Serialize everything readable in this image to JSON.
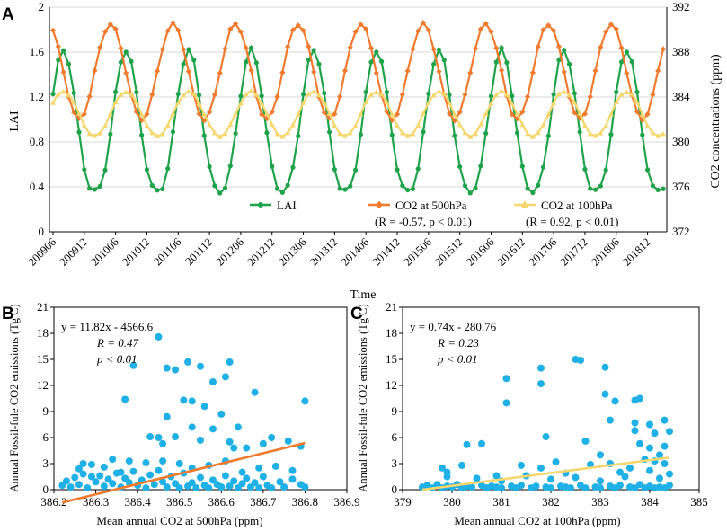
{
  "panels": [
    {
      "label": "A"
    },
    {
      "label": "B"
    },
    {
      "label": "C"
    }
  ],
  "chart_data": [
    {
      "type": "line",
      "panel": "A",
      "xlabel": "Time",
      "ylabel": "LAI",
      "y2label": "CO2 concentrations (ppm)",
      "ylim": [
        0,
        2
      ],
      "y2lim": [
        372,
        392
      ],
      "yticks": [
        "0",
        "0.4",
        "0.8",
        "1.2",
        "1.6",
        "2"
      ],
      "y2ticks": [
        "372",
        "376",
        "380",
        "384",
        "388",
        "392"
      ],
      "xticks": [
        "200906",
        "200912",
        "201006",
        "201012",
        "201106",
        "201112",
        "201206",
        "201212",
        "201306",
        "201312",
        "201406",
        "201412",
        "201506",
        "201512",
        "201606",
        "201612",
        "201706",
        "201712",
        "201806",
        "201812"
      ],
      "start_month": "2009-06",
      "n_months": 118,
      "legend": {
        "lai": "LAI",
        "co2_500": "CO2 at 500hPa",
        "co2_100": "CO2 at 100hPa",
        "stat_500": "(R = -0.57, p < 0.01)",
        "stat_100": "(R = 0.92, p < 0.01)"
      },
      "series": [
        {
          "name": "LAI",
          "axis": "left",
          "color": "#1fa34a",
          "min": 0.36,
          "max": 1.62,
          "peak_month": 7
        },
        {
          "name": "CO2 at 500hPa",
          "axis": "right",
          "color": "#f07a2e",
          "min": 382.0,
          "max": 390.5,
          "peak_month": 4
        },
        {
          "name": "CO2 at 100hPa",
          "axis": "right",
          "color": "#f5d76e",
          "min": 380.5,
          "max": 384.5,
          "peak_month": 7
        }
      ]
    },
    {
      "type": "scatter",
      "panel": "B",
      "xlabel": "Mean annual CO2 at 500hPa (ppm)",
      "ylabel": "Annual Fossil-fule CO2 emissions (Tg C)",
      "xlim": [
        386.2,
        386.9
      ],
      "ylim": [
        0,
        21
      ],
      "xticks": [
        "386.2",
        "386.3",
        "386.4",
        "386.5",
        "386.6",
        "386.7",
        "386.8",
        "386.9"
      ],
      "yticks": [
        "0",
        "3",
        "6",
        "9",
        "12",
        "15",
        "18",
        "21"
      ],
      "equation": "y = 11.82x - 4566.6",
      "r_text": "R = 0.47",
      "p_text": "p < 0.01",
      "slope": 11.82,
      "intercept": -4566.6,
      "fit_x": [
        386.22,
        386.8
      ],
      "point_color": "#1fb0e6",
      "fit_color": "#f07a2e",
      "points": [
        [
          386.45,
          17.6
        ],
        [
          386.39,
          14.3
        ],
        [
          386.47,
          14.0
        ],
        [
          386.49,
          13.8
        ],
        [
          386.52,
          14.7
        ],
        [
          386.55,
          14.2
        ],
        [
          386.62,
          14.7
        ],
        [
          386.58,
          12.4
        ],
        [
          386.61,
          13.0
        ],
        [
          386.51,
          10.3
        ],
        [
          386.53,
          10.2
        ],
        [
          386.37,
          10.4
        ],
        [
          386.56,
          9.6
        ],
        [
          386.68,
          11.2
        ],
        [
          386.8,
          10.2
        ],
        [
          386.47,
          8.4
        ],
        [
          386.6,
          8.7
        ],
        [
          386.53,
          7.2
        ],
        [
          386.58,
          7.0
        ],
        [
          386.64,
          7.2
        ],
        [
          386.43,
          6.1
        ],
        [
          386.45,
          6.0
        ],
        [
          386.49,
          6.1
        ],
        [
          386.55,
          5.7
        ],
        [
          386.62,
          5.5
        ],
        [
          386.46,
          5.3
        ],
        [
          386.63,
          4.8
        ],
        [
          386.66,
          4.8
        ],
        [
          386.72,
          6.0
        ],
        [
          386.76,
          5.6
        ],
        [
          386.79,
          5.0
        ],
        [
          386.7,
          5.3
        ],
        [
          386.34,
          3.5
        ],
        [
          386.38,
          3.3
        ],
        [
          386.42,
          3.1
        ],
        [
          386.46,
          3.3
        ],
        [
          386.5,
          3.0
        ],
        [
          386.53,
          2.5
        ],
        [
          386.57,
          2.8
        ],
        [
          386.61,
          3.3
        ],
        [
          386.65,
          2.0
        ],
        [
          386.69,
          2.5
        ],
        [
          386.73,
          2.7
        ],
        [
          386.77,
          2.2
        ],
        [
          386.22,
          0.5
        ],
        [
          386.23,
          1.0
        ],
        [
          386.24,
          0.3
        ],
        [
          386.25,
          1.4
        ],
        [
          386.26,
          0.6
        ],
        [
          386.27,
          1.8
        ],
        [
          386.28,
          0.2
        ],
        [
          386.29,
          1.5
        ],
        [
          386.3,
          0.9
        ],
        [
          386.31,
          1.6
        ],
        [
          386.32,
          0.4
        ],
        [
          386.33,
          1.2
        ],
        [
          386.34,
          0.7
        ],
        [
          386.35,
          1.9
        ],
        [
          386.36,
          0.3
        ],
        [
          386.37,
          1.3
        ],
        [
          386.38,
          0.8
        ],
        [
          386.39,
          2.1
        ],
        [
          386.4,
          0.5
        ],
        [
          386.41,
          1.1
        ],
        [
          386.42,
          0.2
        ],
        [
          386.43,
          1.7
        ],
        [
          386.44,
          0.6
        ],
        [
          386.45,
          2.2
        ],
        [
          386.46,
          0.9
        ],
        [
          386.47,
          0.3
        ],
        [
          386.48,
          1.5
        ],
        [
          386.49,
          0.7
        ],
        [
          386.5,
          0.2
        ],
        [
          386.51,
          1.9
        ],
        [
          386.52,
          0.4
        ],
        [
          386.53,
          0.8
        ],
        [
          386.54,
          0.2
        ],
        [
          386.55,
          1.4
        ],
        [
          386.56,
          0.5
        ],
        [
          386.57,
          0.2
        ],
        [
          386.58,
          1.1
        ],
        [
          386.59,
          0.6
        ],
        [
          386.6,
          0.3
        ],
        [
          386.61,
          1.6
        ],
        [
          386.62,
          0.4
        ],
        [
          386.63,
          1.0
        ],
        [
          386.64,
          0.2
        ],
        [
          386.65,
          0.7
        ],
        [
          386.66,
          1.3
        ],
        [
          386.67,
          0.3
        ],
        [
          386.68,
          0.8
        ],
        [
          386.69,
          0.2
        ],
        [
          386.7,
          1.5
        ],
        [
          386.71,
          0.5
        ],
        [
          386.72,
          0.2
        ],
        [
          386.74,
          0.9
        ],
        [
          386.75,
          0.3
        ],
        [
          386.77,
          1.2
        ],
        [
          386.79,
          0.6
        ],
        [
          386.8,
          0.3
        ],
        [
          386.26,
          2.4
        ],
        [
          386.29,
          2.9
        ],
        [
          386.32,
          2.6
        ],
        [
          386.36,
          2.0
        ],
        [
          386.27,
          3.0
        ]
      ]
    },
    {
      "type": "scatter",
      "panel": "C",
      "xlabel": "Mean annual CO2 at 100hPa (ppm)",
      "ylabel": "Annual Fossil-fule CO2 emissions (Tg C)",
      "xlim": [
        379,
        385
      ],
      "ylim": [
        0,
        21
      ],
      "xticks": [
        "379",
        "380",
        "381",
        "382",
        "383",
        "384",
        "385"
      ],
      "yticks": [
        "0",
        "3",
        "6",
        "9",
        "12",
        "15",
        "18",
        "21"
      ],
      "equation": "y = 0.74x - 280.76",
      "r_text": "R = 0.23",
      "p_text": "p < 0.01",
      "slope": 0.74,
      "intercept": -280.76,
      "fit_x": [
        379.4,
        384.4
      ],
      "point_color": "#1fb0e6",
      "fit_color": "#f5d76e",
      "points": [
        [
          382.5,
          15.0
        ],
        [
          382.6,
          14.9
        ],
        [
          383.1,
          14.1
        ],
        [
          381.8,
          14.0
        ],
        [
          381.8,
          12.2
        ],
        [
          381.1,
          12.8
        ],
        [
          381.1,
          10.0
        ],
        [
          383.1,
          11.0
        ],
        [
          383.3,
          10.2
        ],
        [
          383.7,
          10.3
        ],
        [
          383.8,
          10.5
        ],
        [
          383.2,
          8.0
        ],
        [
          383.7,
          7.7
        ],
        [
          384.0,
          7.5
        ],
        [
          384.3,
          8.0
        ],
        [
          383.7,
          6.8
        ],
        [
          384.1,
          6.5
        ],
        [
          384.4,
          6.7
        ],
        [
          382.7,
          5.6
        ],
        [
          381.9,
          6.1
        ],
        [
          380.3,
          5.2
        ],
        [
          380.6,
          5.3
        ],
        [
          383.8,
          5.3
        ],
        [
          384.0,
          4.8
        ],
        [
          384.2,
          4.0
        ],
        [
          384.3,
          5.0
        ],
        [
          383.0,
          4.0
        ],
        [
          383.9,
          3.5
        ],
        [
          384.1,
          3.3
        ],
        [
          384.3,
          3.0
        ],
        [
          380.2,
          2.8
        ],
        [
          379.8,
          2.5
        ],
        [
          379.9,
          2.0
        ],
        [
          381.4,
          2.8
        ],
        [
          381.8,
          2.5
        ],
        [
          382.1,
          3.2
        ],
        [
          382.8,
          2.9
        ],
        [
          383.2,
          3.0
        ],
        [
          383.6,
          2.5
        ],
        [
          384.0,
          2.2
        ],
        [
          384.4,
          1.8
        ],
        [
          379.9,
          1.5
        ],
        [
          380.5,
          1.3
        ],
        [
          381.0,
          1.0
        ],
        [
          381.5,
          1.6
        ],
        [
          382.0,
          1.2
        ],
        [
          382.5,
          1.4
        ],
        [
          383.0,
          1.0
        ],
        [
          383.5,
          1.5
        ],
        [
          384.2,
          1.3
        ],
        [
          379.4,
          0.3
        ],
        [
          379.5,
          0.5
        ],
        [
          379.6,
          0.2
        ],
        [
          379.7,
          0.6
        ],
        [
          379.8,
          0.2
        ],
        [
          379.9,
          0.4
        ],
        [
          380.0,
          0.3
        ],
        [
          380.1,
          0.6
        ],
        [
          380.2,
          0.2
        ],
        [
          380.3,
          0.4
        ],
        [
          380.4,
          0.3
        ],
        [
          380.6,
          0.5
        ],
        [
          380.7,
          0.2
        ],
        [
          380.8,
          0.4
        ],
        [
          380.9,
          0.3
        ],
        [
          381.0,
          0.2
        ],
        [
          381.2,
          0.4
        ],
        [
          381.3,
          0.2
        ],
        [
          381.4,
          0.5
        ],
        [
          381.6,
          0.2
        ],
        [
          381.7,
          0.4
        ],
        [
          381.9,
          0.3
        ],
        [
          382.0,
          0.2
        ],
        [
          382.2,
          0.4
        ],
        [
          382.3,
          0.3
        ],
        [
          382.4,
          0.2
        ],
        [
          382.6,
          0.5
        ],
        [
          382.7,
          0.2
        ],
        [
          382.9,
          0.3
        ],
        [
          383.0,
          0.2
        ],
        [
          383.2,
          0.4
        ],
        [
          383.3,
          0.2
        ],
        [
          383.4,
          0.5
        ],
        [
          383.6,
          0.3
        ],
        [
          383.7,
          0.2
        ],
        [
          383.8,
          0.6
        ],
        [
          383.9,
          0.2
        ],
        [
          384.0,
          0.4
        ],
        [
          384.1,
          0.2
        ],
        [
          384.2,
          0.3
        ],
        [
          384.3,
          0.2
        ],
        [
          384.4,
          0.5
        ],
        [
          380.9,
          1.6
        ],
        [
          382.3,
          1.9
        ],
        [
          383.4,
          2.0
        ]
      ]
    }
  ]
}
